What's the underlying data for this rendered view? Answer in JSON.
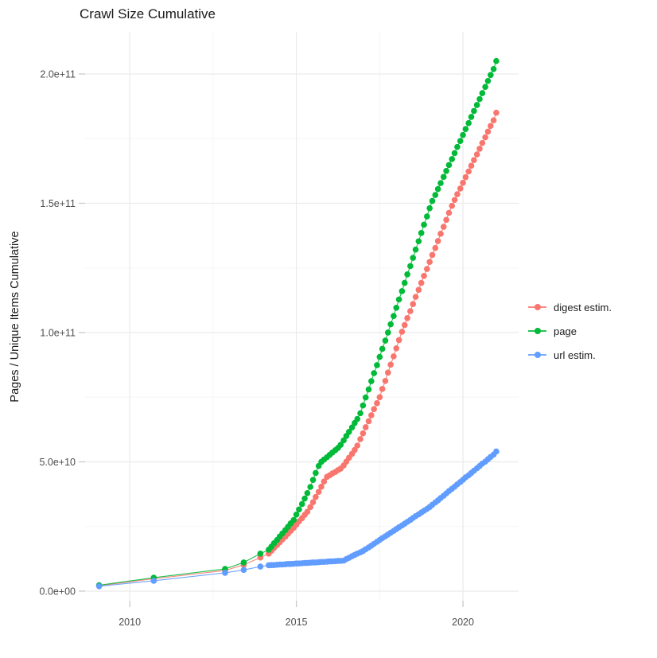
{
  "chart_data": {
    "type": "scatter",
    "title": "Crawl Size Cumulative",
    "xlabel": "",
    "ylabel": "Pages / Unique Items Cumulative",
    "values_unit": "1e9 (value column is billions; axis shows e-notation)",
    "grid": "on",
    "legend_position": "right",
    "xlim": [
      2008.66,
      2021.67
    ],
    "ylim": [
      -3.7,
      216.3
    ],
    "x_ticks": [
      {
        "value": 2010,
        "label": "2010"
      },
      {
        "value": 2015,
        "label": "2015"
      },
      {
        "value": 2020,
        "label": "2020"
      }
    ],
    "y_ticks": [
      {
        "value": 0,
        "label": "0.0e+00"
      },
      {
        "value": 50,
        "label": "5.0e+10"
      },
      {
        "value": 100,
        "label": "1.0e+11"
      },
      {
        "value": 150,
        "label": "1.5e+11"
      },
      {
        "value": 200,
        "label": "2.0e+11"
      }
    ],
    "x_minor": [
      2012.5,
      2017.5
    ],
    "y_minor": [
      25,
      75,
      125,
      175
    ],
    "colors": {
      "major_grid": "#ebebeb",
      "minor_grid": "#f5f5f5",
      "tick": "#c9c9c9",
      "axis_text": "#4d4d4d"
    },
    "series": [
      {
        "name": "digest estim.",
        "color": "#F8766D",
        "points": [
          [
            2009.08,
            2.1
          ],
          [
            2010.72,
            4.8
          ],
          [
            2012.86,
            8.0
          ],
          [
            2013.42,
            10.2
          ],
          [
            2013.92,
            13.0
          ],
          [
            2014.17,
            14.5
          ],
          [
            2014.25,
            15.6
          ],
          [
            2014.33,
            16.7
          ],
          [
            2014.42,
            17.8
          ],
          [
            2014.5,
            18.9
          ],
          [
            2014.58,
            20.0
          ],
          [
            2014.67,
            21.1
          ],
          [
            2014.75,
            22.2
          ],
          [
            2014.83,
            23.3
          ],
          [
            2014.92,
            24.5
          ],
          [
            2015.0,
            25.7
          ],
          [
            2015.08,
            27.0
          ],
          [
            2015.17,
            28.2
          ],
          [
            2015.25,
            29.5
          ],
          [
            2015.33,
            30.7
          ],
          [
            2015.42,
            32.5
          ],
          [
            2015.5,
            34.4
          ],
          [
            2015.58,
            36.4
          ],
          [
            2015.67,
            38.4
          ],
          [
            2015.75,
            40.4
          ],
          [
            2015.83,
            42.4
          ],
          [
            2015.92,
            44.2
          ],
          [
            2016.0,
            44.8
          ],
          [
            2016.08,
            45.5
          ],
          [
            2016.17,
            46.1
          ],
          [
            2016.25,
            46.8
          ],
          [
            2016.33,
            47.4
          ],
          [
            2016.42,
            48.6
          ],
          [
            2016.5,
            50.1
          ],
          [
            2016.58,
            51.6
          ],
          [
            2016.67,
            53.1
          ],
          [
            2016.75,
            54.6
          ],
          [
            2016.83,
            56.3
          ],
          [
            2016.92,
            58.8
          ],
          [
            2017.0,
            61.0
          ],
          [
            2017.08,
            63.4
          ],
          [
            2017.17,
            65.7
          ],
          [
            2017.25,
            68.0
          ],
          [
            2017.33,
            70.4
          ],
          [
            2017.42,
            72.7
          ],
          [
            2017.5,
            75.0
          ],
          [
            2017.58,
            78.2
          ],
          [
            2017.67,
            81.3
          ],
          [
            2017.75,
            84.5
          ],
          [
            2017.83,
            87.6
          ],
          [
            2017.92,
            90.8
          ],
          [
            2018.0,
            93.9
          ],
          [
            2018.08,
            97.1
          ],
          [
            2018.17,
            100.3
          ],
          [
            2018.25,
            102.9
          ],
          [
            2018.33,
            105.6
          ],
          [
            2018.42,
            108.3
          ],
          [
            2018.5,
            111.0
          ],
          [
            2018.58,
            113.8
          ],
          [
            2018.67,
            116.5
          ],
          [
            2018.75,
            119.2
          ],
          [
            2018.83,
            121.9
          ],
          [
            2018.92,
            124.6
          ],
          [
            2019.0,
            127.3
          ],
          [
            2019.08,
            130.0
          ],
          [
            2019.17,
            132.7
          ],
          [
            2019.25,
            135.4
          ],
          [
            2019.33,
            138.2
          ],
          [
            2019.42,
            140.9
          ],
          [
            2019.5,
            143.6
          ],
          [
            2019.58,
            146.3
          ],
          [
            2019.67,
            149.0
          ],
          [
            2019.75,
            151.3
          ],
          [
            2019.83,
            153.5
          ],
          [
            2019.92,
            155.7
          ],
          [
            2020.0,
            157.9
          ],
          [
            2020.08,
            160.1
          ],
          [
            2020.17,
            162.3
          ],
          [
            2020.25,
            164.5
          ],
          [
            2020.33,
            166.7
          ],
          [
            2020.42,
            168.9
          ],
          [
            2020.5,
            171.1
          ],
          [
            2020.58,
            173.3
          ],
          [
            2020.67,
            175.5
          ],
          [
            2020.75,
            177.7
          ],
          [
            2020.83,
            179.9
          ],
          [
            2020.92,
            182.1
          ],
          [
            2021.0,
            185.0
          ]
        ]
      },
      {
        "name": "page",
        "color": "#00BA38",
        "points": [
          [
            2009.08,
            2.3
          ],
          [
            2010.72,
            5.2
          ],
          [
            2012.86,
            8.6
          ],
          [
            2013.42,
            11.1
          ],
          [
            2013.92,
            14.5
          ],
          [
            2014.17,
            16.0
          ],
          [
            2014.25,
            17.2
          ],
          [
            2014.33,
            18.5
          ],
          [
            2014.42,
            19.8
          ],
          [
            2014.5,
            21.1
          ],
          [
            2014.58,
            22.3
          ],
          [
            2014.67,
            23.6
          ],
          [
            2014.75,
            24.9
          ],
          [
            2014.83,
            26.2
          ],
          [
            2014.92,
            27.5
          ],
          [
            2015.0,
            29.6
          ],
          [
            2015.08,
            31.6
          ],
          [
            2015.17,
            33.7
          ],
          [
            2015.25,
            35.8
          ],
          [
            2015.33,
            37.9
          ],
          [
            2015.42,
            40.3
          ],
          [
            2015.5,
            43.0
          ],
          [
            2015.58,
            45.7
          ],
          [
            2015.67,
            48.4
          ],
          [
            2015.75,
            50.0
          ],
          [
            2015.83,
            50.9
          ],
          [
            2015.92,
            51.8
          ],
          [
            2016.0,
            52.7
          ],
          [
            2016.08,
            53.6
          ],
          [
            2016.17,
            54.5
          ],
          [
            2016.25,
            55.4
          ],
          [
            2016.33,
            56.6
          ],
          [
            2016.42,
            58.3
          ],
          [
            2016.5,
            60.0
          ],
          [
            2016.58,
            61.6
          ],
          [
            2016.67,
            63.3
          ],
          [
            2016.75,
            65.0
          ],
          [
            2016.83,
            66.6
          ],
          [
            2016.92,
            68.8
          ],
          [
            2017.0,
            71.8
          ],
          [
            2017.08,
            74.9
          ],
          [
            2017.17,
            78.0
          ],
          [
            2017.25,
            81.2
          ],
          [
            2017.33,
            84.3
          ],
          [
            2017.42,
            87.4
          ],
          [
            2017.5,
            90.6
          ],
          [
            2017.58,
            93.7
          ],
          [
            2017.67,
            96.9
          ],
          [
            2017.75,
            100.0
          ],
          [
            2017.83,
            103.2
          ],
          [
            2017.92,
            106.4
          ],
          [
            2018.0,
            109.6
          ],
          [
            2018.08,
            112.8
          ],
          [
            2018.17,
            116.0
          ],
          [
            2018.25,
            119.2
          ],
          [
            2018.33,
            122.5
          ],
          [
            2018.42,
            125.7
          ],
          [
            2018.5,
            128.9
          ],
          [
            2018.58,
            132.1
          ],
          [
            2018.67,
            135.3
          ],
          [
            2018.75,
            138.5
          ],
          [
            2018.83,
            141.7
          ],
          [
            2018.92,
            144.9
          ],
          [
            2019.0,
            148.1
          ],
          [
            2019.08,
            150.9
          ],
          [
            2019.17,
            153.2
          ],
          [
            2019.25,
            155.5
          ],
          [
            2019.33,
            157.8
          ],
          [
            2019.42,
            160.2
          ],
          [
            2019.5,
            162.5
          ],
          [
            2019.58,
            164.8
          ],
          [
            2019.67,
            167.1
          ],
          [
            2019.75,
            169.4
          ],
          [
            2019.83,
            171.8
          ],
          [
            2019.92,
            174.1
          ],
          [
            2020.0,
            176.4
          ],
          [
            2020.08,
            178.7
          ],
          [
            2020.17,
            181.0
          ],
          [
            2020.25,
            183.4
          ],
          [
            2020.33,
            185.7
          ],
          [
            2020.42,
            188.0
          ],
          [
            2020.5,
            190.3
          ],
          [
            2020.58,
            192.6
          ],
          [
            2020.67,
            195.0
          ],
          [
            2020.75,
            197.3
          ],
          [
            2020.83,
            199.6
          ],
          [
            2020.92,
            201.9
          ],
          [
            2021.0,
            205.0
          ]
        ]
      },
      {
        "name": "url estim.",
        "color": "#619CFF",
        "points": [
          [
            2009.08,
            1.9
          ],
          [
            2010.72,
            4.0
          ],
          [
            2012.86,
            7.1
          ],
          [
            2013.42,
            8.2
          ],
          [
            2013.92,
            9.5
          ],
          [
            2014.17,
            10.0
          ],
          [
            2014.25,
            10.1
          ],
          [
            2014.33,
            10.1
          ],
          [
            2014.42,
            10.2
          ],
          [
            2014.5,
            10.3
          ],
          [
            2014.58,
            10.3
          ],
          [
            2014.67,
            10.4
          ],
          [
            2014.75,
            10.5
          ],
          [
            2014.83,
            10.5
          ],
          [
            2014.92,
            10.6
          ],
          [
            2015.0,
            10.7
          ],
          [
            2015.08,
            10.7
          ],
          [
            2015.17,
            10.8
          ],
          [
            2015.25,
            10.9
          ],
          [
            2015.33,
            10.9
          ],
          [
            2015.42,
            11.0
          ],
          [
            2015.5,
            11.1
          ],
          [
            2015.58,
            11.1
          ],
          [
            2015.67,
            11.2
          ],
          [
            2015.75,
            11.3
          ],
          [
            2015.83,
            11.3
          ],
          [
            2015.92,
            11.4
          ],
          [
            2016.0,
            11.5
          ],
          [
            2016.08,
            11.5
          ],
          [
            2016.17,
            11.6
          ],
          [
            2016.25,
            11.7
          ],
          [
            2016.33,
            11.7
          ],
          [
            2016.42,
            11.8
          ],
          [
            2016.5,
            12.4
          ],
          [
            2016.58,
            12.9
          ],
          [
            2016.67,
            13.5
          ],
          [
            2016.75,
            14.0
          ],
          [
            2016.83,
            14.5
          ],
          [
            2016.92,
            15.0
          ],
          [
            2017.0,
            15.5
          ],
          [
            2017.08,
            16.2
          ],
          [
            2017.17,
            16.9
          ],
          [
            2017.25,
            17.6
          ],
          [
            2017.33,
            18.3
          ],
          [
            2017.42,
            19.1
          ],
          [
            2017.5,
            19.8
          ],
          [
            2017.58,
            20.5
          ],
          [
            2017.67,
            21.2
          ],
          [
            2017.75,
            21.9
          ],
          [
            2017.83,
            22.6
          ],
          [
            2017.92,
            23.3
          ],
          [
            2018.0,
            24.0
          ],
          [
            2018.08,
            24.7
          ],
          [
            2018.17,
            25.4
          ],
          [
            2018.25,
            26.1
          ],
          [
            2018.33,
            26.8
          ],
          [
            2018.42,
            27.5
          ],
          [
            2018.5,
            28.3
          ],
          [
            2018.58,
            29.0
          ],
          [
            2018.67,
            29.7
          ],
          [
            2018.75,
            30.4
          ],
          [
            2018.83,
            31.1
          ],
          [
            2018.92,
            31.8
          ],
          [
            2019.0,
            32.5
          ],
          [
            2019.08,
            33.4
          ],
          [
            2019.17,
            34.3
          ],
          [
            2019.25,
            35.1
          ],
          [
            2019.33,
            36.0
          ],
          [
            2019.42,
            36.9
          ],
          [
            2019.5,
            37.8
          ],
          [
            2019.58,
            38.7
          ],
          [
            2019.67,
            39.6
          ],
          [
            2019.75,
            40.4
          ],
          [
            2019.83,
            41.3
          ],
          [
            2019.92,
            42.2
          ],
          [
            2020.0,
            43.1
          ],
          [
            2020.08,
            44.0
          ],
          [
            2020.17,
            44.8
          ],
          [
            2020.25,
            45.7
          ],
          [
            2020.33,
            46.6
          ],
          [
            2020.42,
            47.5
          ],
          [
            2020.5,
            48.4
          ],
          [
            2020.58,
            49.3
          ],
          [
            2020.67,
            50.1
          ],
          [
            2020.75,
            51.0
          ],
          [
            2020.83,
            51.9
          ],
          [
            2020.92,
            52.8
          ],
          [
            2021.0,
            54.0
          ]
        ]
      }
    ]
  }
}
